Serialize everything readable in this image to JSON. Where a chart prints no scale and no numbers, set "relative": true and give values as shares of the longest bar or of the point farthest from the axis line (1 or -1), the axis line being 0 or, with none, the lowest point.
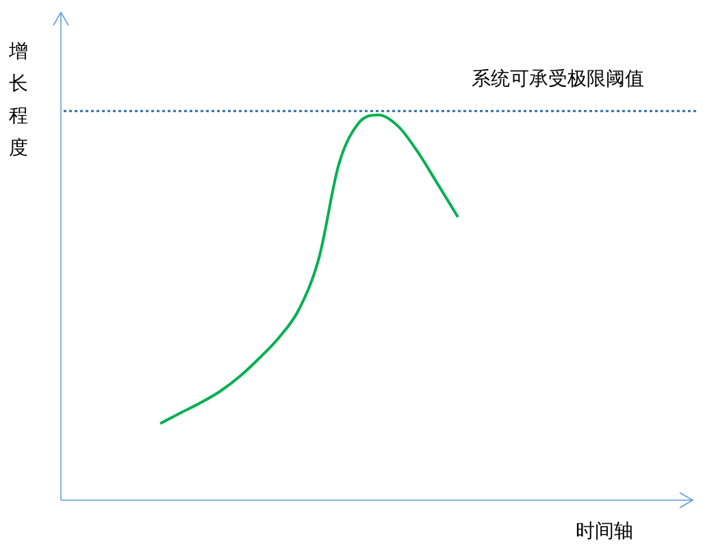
{
  "chart_data": {
    "type": "line",
    "relative": true,
    "xlabel": "时间轴",
    "ylabel": "增长程度",
    "categories": [
      null,
      null,
      null,
      null,
      null,
      null,
      null,
      null,
      null,
      null,
      null,
      null,
      null,
      null,
      null,
      null,
      null,
      null,
      null,
      null,
      null,
      null,
      null,
      null,
      null,
      null,
      null,
      null,
      null,
      null,
      null,
      null,
      null
    ],
    "series": [
      {
        "color": "#00b050",
        "values": [
          null,
          null,
          null,
          null,
          null,
          0.199,
          0.226,
          0.252,
          0.282,
          0.321,
          0.369,
          0.423,
          0.496,
          0.629,
          0.872,
          0.979,
          1,
          0.97,
          0.902,
          0.819,
          0.735,
          null,
          null,
          null,
          null,
          null,
          null,
          null,
          null,
          null,
          null,
          null,
          null
        ]
      }
    ],
    "ref_lines": [
      {
        "axis": "y",
        "value": 1.01,
        "label": "系统可承受极限阈值",
        "color": "#2e6ca4",
        "line_style": "dotted"
      }
    ]
  }
}
